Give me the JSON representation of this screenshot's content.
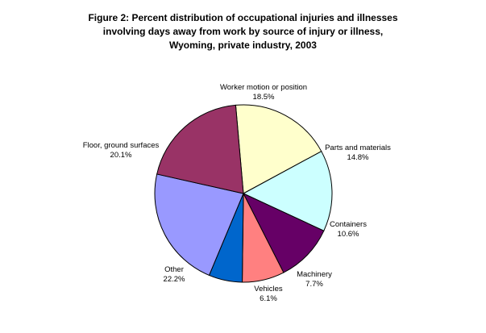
{
  "chart_data": {
    "type": "pie",
    "title": [
      "Figure 2: Percent distribution of occupational injuries and illnesses",
      "involving days away from work by source of injury or illness,",
      "Wyoming, private industry, 2003"
    ],
    "slices": [
      {
        "name": "Worker motion or position",
        "value": 18.5,
        "value_label": "18.5%",
        "color": "#ffffcc"
      },
      {
        "name": "Parts and materials",
        "value": 14.8,
        "value_label": "14.8%",
        "color": "#ccffff"
      },
      {
        "name": "Containers",
        "value": 10.6,
        "value_label": "10.6%",
        "color": "#660066"
      },
      {
        "name": "Machinery",
        "value": 7.7,
        "value_label": "7.7%",
        "color": "#ff8080"
      },
      {
        "name": "Vehicles",
        "value": 6.1,
        "value_label": "6.1%",
        "color": "#0066cc"
      },
      {
        "name": "Other",
        "value": 22.2,
        "value_label": "22.2%",
        "color": "#9999ff"
      },
      {
        "name": "Floor, ground surfaces",
        "value": 20.1,
        "value_label": "20.1%",
        "color": "#993366"
      }
    ]
  }
}
